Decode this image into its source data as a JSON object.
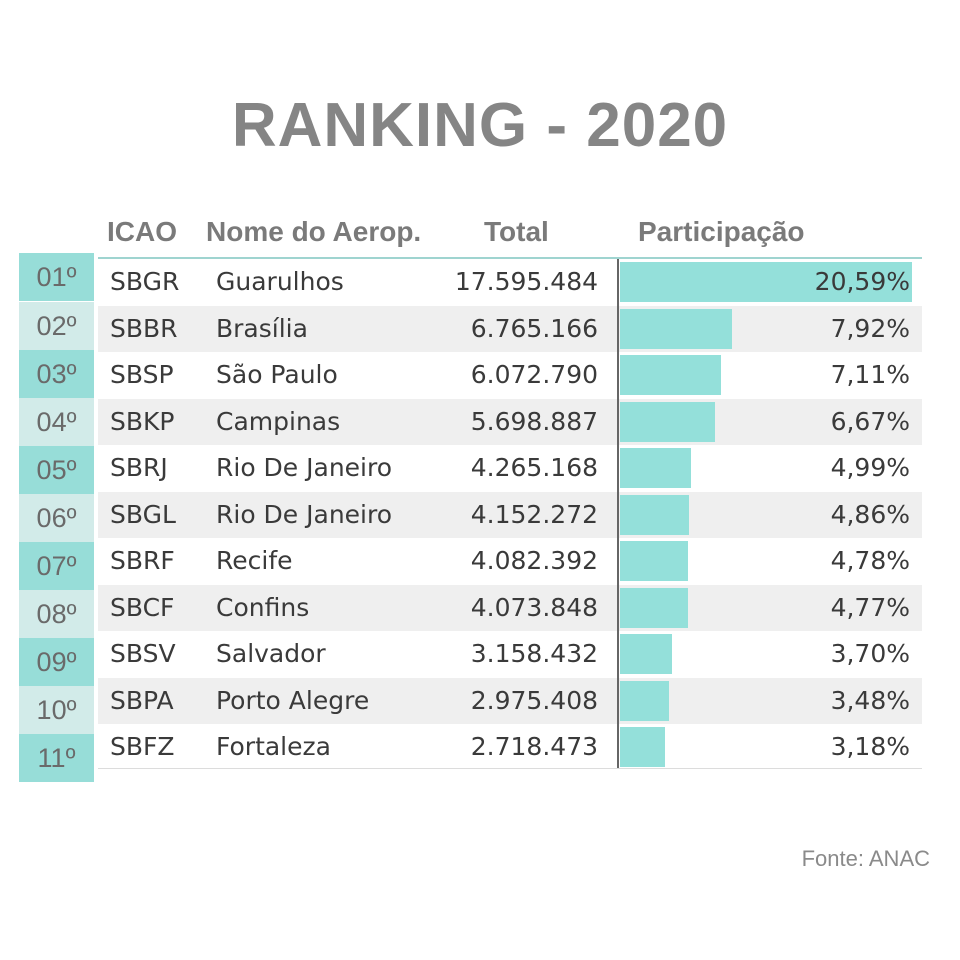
{
  "title": "RANKING - 2020",
  "headers": {
    "icao": "ICAO",
    "name": "Nome do Aerop.",
    "total": "Total",
    "participation": "Participação"
  },
  "source": "Fonte: ANAC",
  "colors": {
    "bar": "#94e0da",
    "rank_odd": "#97ddd8",
    "rank_even": "#d2ebe9",
    "title": "#858585"
  },
  "chart_data": {
    "type": "table",
    "max_participation": 20.59,
    "rows": [
      {
        "rank": "01º",
        "icao": "SBGR",
        "name": "Guarulhos",
        "total": "17.595.484",
        "participation": 20.59,
        "participation_label": "20,59%"
      },
      {
        "rank": "02º",
        "icao": "SBBR",
        "name": "Brasília",
        "total": "6.765.166",
        "participation": 7.92,
        "participation_label": "7,92%"
      },
      {
        "rank": "03º",
        "icao": "SBSP",
        "name": "São Paulo",
        "total": "6.072.790",
        "participation": 7.11,
        "participation_label": "7,11%"
      },
      {
        "rank": "04º",
        "icao": "SBKP",
        "name": "Campinas",
        "total": "5.698.887",
        "participation": 6.67,
        "participation_label": "6,67%"
      },
      {
        "rank": "05º",
        "icao": "SBRJ",
        "name": "Rio De Janeiro",
        "total": "4.265.168",
        "participation": 4.99,
        "participation_label": "4,99%"
      },
      {
        "rank": "06º",
        "icao": "SBGL",
        "name": "Rio De Janeiro",
        "total": "4.152.272",
        "participation": 4.86,
        "participation_label": "4,86%"
      },
      {
        "rank": "07º",
        "icao": "SBRF",
        "name": "Recife",
        "total": "4.082.392",
        "participation": 4.78,
        "participation_label": "4,78%"
      },
      {
        "rank": "08º",
        "icao": "SBCF",
        "name": "Confins",
        "total": "4.073.848",
        "participation": 4.77,
        "participation_label": "4,77%"
      },
      {
        "rank": "09º",
        "icao": "SBSV",
        "name": "Salvador",
        "total": "3.158.432",
        "participation": 3.7,
        "participation_label": "3,70%"
      },
      {
        "rank": "10º",
        "icao": "SBPA",
        "name": "Porto Alegre",
        "total": "2.975.408",
        "participation": 3.48,
        "participation_label": "3,48%"
      },
      {
        "rank": "11º",
        "icao": "SBFZ",
        "name": "Fortaleza",
        "total": "2.718.473",
        "participation": 3.18,
        "participation_label": "3,18%"
      }
    ]
  }
}
